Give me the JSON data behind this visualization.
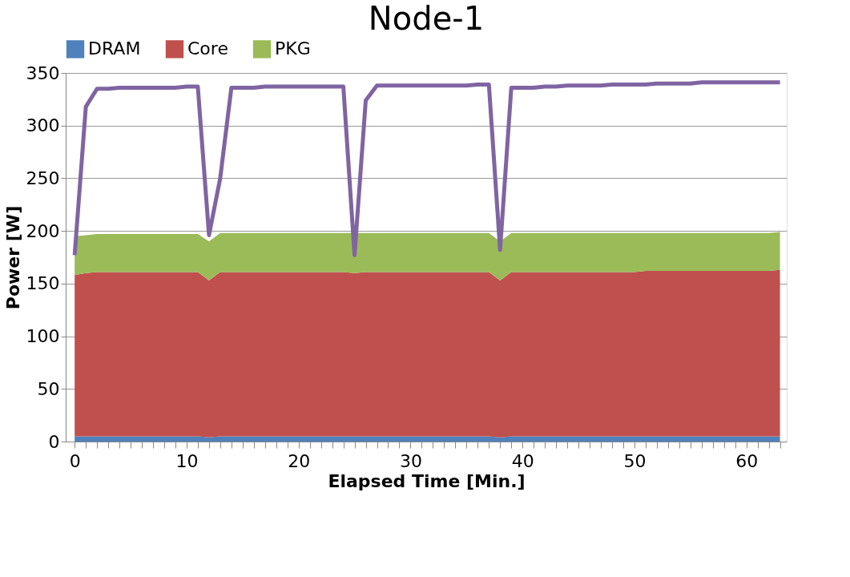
{
  "chart_data": {
    "type": "area",
    "title": "Node-1",
    "xlabel": "Elapsed Time [Min.]",
    "ylabel": "Power [W]",
    "x": [
      0,
      1,
      2,
      3,
      4,
      5,
      6,
      7,
      8,
      9,
      10,
      11,
      12,
      13,
      14,
      15,
      16,
      17,
      18,
      19,
      20,
      21,
      22,
      23,
      24,
      25,
      26,
      27,
      28,
      29,
      30,
      31,
      32,
      33,
      34,
      35,
      36,
      37,
      38,
      39,
      40,
      41,
      42,
      43,
      44,
      45,
      46,
      47,
      48,
      49,
      50,
      51,
      52,
      53,
      54,
      55,
      56,
      57,
      58,
      59,
      60,
      61,
      62,
      63
    ],
    "stacked": true,
    "series": [
      {
        "name": "DRAM",
        "color": "#4f81bd",
        "values": [
          5,
          5,
          5,
          5,
          5,
          5,
          5,
          5,
          5,
          5,
          5,
          5,
          4,
          5,
          5,
          5,
          5,
          5,
          5,
          5,
          5,
          5,
          5,
          5,
          5,
          5,
          5,
          5,
          5,
          5,
          5,
          5,
          5,
          5,
          5,
          5,
          5,
          5,
          4,
          5,
          5,
          5,
          5,
          5,
          5,
          5,
          5,
          5,
          5,
          5,
          5,
          5,
          5,
          5,
          5,
          5,
          5,
          5,
          5,
          5,
          5,
          5,
          5,
          5
        ]
      },
      {
        "name": "Core",
        "color": "#c0504d",
        "values": [
          153,
          155,
          156,
          156,
          156,
          156,
          156,
          156,
          156,
          156,
          156,
          156,
          149,
          156,
          156,
          156,
          156,
          156,
          156,
          156,
          156,
          156,
          156,
          156,
          156,
          155,
          156,
          156,
          156,
          156,
          156,
          156,
          156,
          156,
          156,
          156,
          156,
          156,
          149,
          156,
          156,
          156,
          156,
          156,
          156,
          156,
          156,
          156,
          156,
          156,
          156,
          157,
          157,
          157,
          157,
          157,
          157,
          157,
          157,
          157,
          157,
          157,
          157,
          158
        ]
      },
      {
        "name": "PKG",
        "color": "#9bbb59",
        "values": [
          37,
          36,
          36,
          36,
          36,
          36,
          36,
          36,
          36,
          36,
          36,
          36,
          37,
          37,
          37,
          37,
          37,
          37,
          37,
          37,
          37,
          37,
          37,
          37,
          37,
          38,
          37,
          37,
          37,
          37,
          37,
          37,
          37,
          37,
          37,
          37,
          37,
          37,
          37,
          37,
          37,
          37,
          37,
          37,
          37,
          37,
          37,
          37,
          37,
          37,
          37,
          36,
          36,
          36,
          36,
          36,
          36,
          36,
          36,
          36,
          36,
          36,
          36,
          36
        ]
      },
      {
        "type": "line",
        "color": "#8064a2",
        "values": [
          177,
          318,
          335,
          335,
          336,
          336,
          336,
          336,
          336,
          336,
          337,
          337,
          196,
          250,
          336,
          336,
          336,
          337,
          337,
          337,
          337,
          337,
          337,
          337,
          337,
          177,
          324,
          338,
          338,
          338,
          338,
          338,
          338,
          338,
          338,
          338,
          339,
          339,
          182,
          336,
          336,
          336,
          337,
          337,
          338,
          338,
          338,
          338,
          339,
          339,
          339,
          339,
          340,
          340,
          340,
          340,
          341,
          341,
          341,
          341,
          341,
          341,
          341,
          341
        ]
      }
    ],
    "xlim": [
      -0.8,
      63.6
    ],
    "xticks": [
      0,
      {
        "value": 1,
        "label": null
      },
      {
        "value": 2,
        "label": null
      },
      {
        "value": 3,
        "label": null
      },
      {
        "value": 4,
        "label": null
      },
      {
        "value": 5,
        "label": null
      },
      {
        "value": 6,
        "label": null
      },
      {
        "value": 7,
        "label": null
      },
      {
        "value": 8,
        "label": null
      },
      {
        "value": 9,
        "label": null
      },
      10,
      {
        "value": 11,
        "label": null
      },
      {
        "value": 12,
        "label": null
      },
      {
        "value": 13,
        "label": null
      },
      {
        "value": 14,
        "label": null
      },
      {
        "value": 15,
        "label": null
      },
      {
        "value": 16,
        "label": null
      },
      {
        "value": 17,
        "label": null
      },
      {
        "value": 18,
        "label": null
      },
      {
        "value": 19,
        "label": null
      },
      20,
      {
        "value": 21,
        "label": null
      },
      {
        "value": 22,
        "label": null
      },
      {
        "value": 23,
        "label": null
      },
      {
        "value": 24,
        "label": null
      },
      {
        "value": 25,
        "label": null
      },
      {
        "value": 26,
        "label": null
      },
      {
        "value": 27,
        "label": null
      },
      {
        "value": 28,
        "label": null
      },
      {
        "value": 29,
        "label": null
      },
      30,
      {
        "value": 31,
        "label": null
      },
      {
        "value": 32,
        "label": null
      },
      {
        "value": 33,
        "label": null
      },
      {
        "value": 34,
        "label": null
      },
      {
        "value": 35,
        "label": null
      },
      {
        "value": 36,
        "label": null
      },
      {
        "value": 37,
        "label": null
      },
      {
        "value": 38,
        "label": null
      },
      {
        "value": 39,
        "label": null
      },
      40,
      {
        "value": 41,
        "label": null
      },
      {
        "value": 42,
        "label": null
      },
      {
        "value": 43,
        "label": null
      },
      {
        "value": 44,
        "label": null
      },
      {
        "value": 45,
        "label": null
      },
      {
        "value": 46,
        "label": null
      },
      {
        "value": 47,
        "label": null
      },
      {
        "value": 48,
        "label": null
      },
      {
        "value": 49,
        "label": null
      },
      50,
      {
        "value": 51,
        "label": null
      },
      {
        "value": 52,
        "label": null
      },
      {
        "value": 53,
        "label": null
      },
      {
        "value": 54,
        "label": null
      },
      {
        "value": 55,
        "label": null
      },
      {
        "value": 56,
        "label": null
      },
      {
        "value": 57,
        "label": null
      },
      {
        "value": 58,
        "label": null
      },
      {
        "value": 59,
        "label": null
      },
      60,
      {
        "value": 61,
        "label": null
      },
      {
        "value": 62,
        "label": null
      },
      {
        "value": 63,
        "label": null
      }
    ],
    "ylim": [
      0,
      350
    ],
    "yticks": [
      0,
      50,
      100,
      150,
      200,
      250,
      300,
      350
    ],
    "grid": "y",
    "legend": "top",
    "line_style": "solid"
  }
}
